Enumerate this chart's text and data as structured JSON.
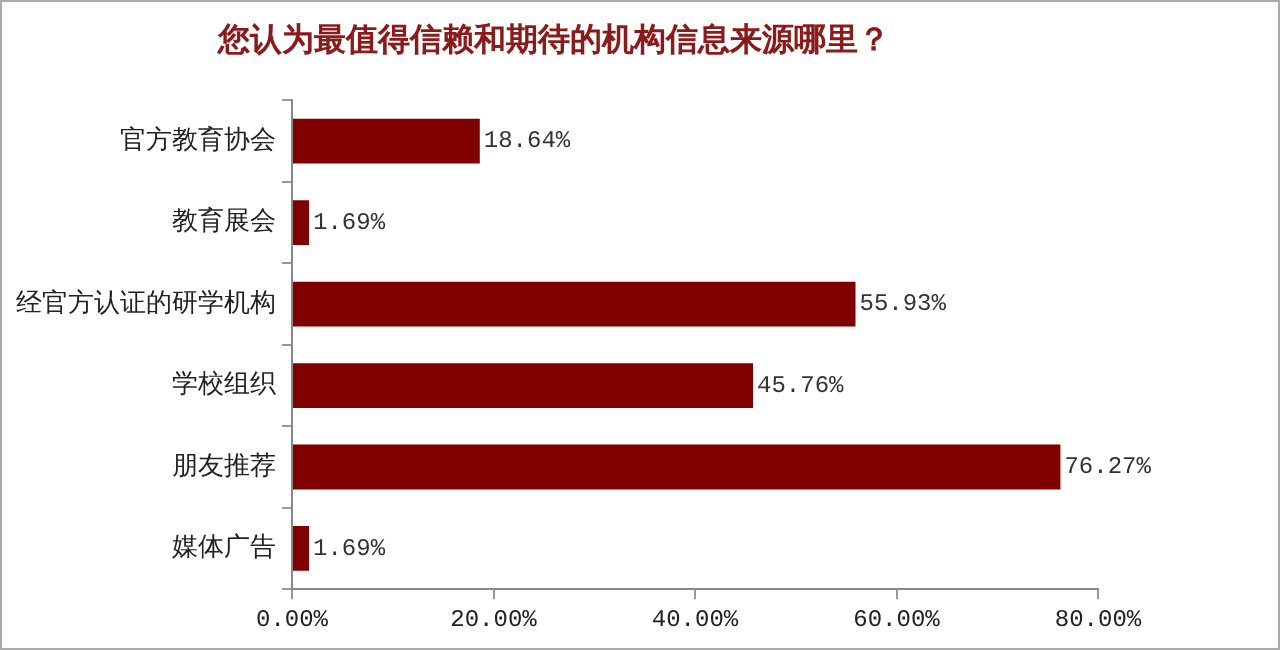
{
  "chart_data": {
    "type": "bar",
    "orientation": "horizontal",
    "title": "您认为最值得信赖和期待的机构信息来源哪里？",
    "categories": [
      "官方教育协会",
      "教育展会",
      "经官方认证的研学机构",
      "学校组织",
      "朋友推荐",
      "媒体广告"
    ],
    "values": [
      18.64,
      1.69,
      55.93,
      45.76,
      76.27,
      1.69
    ],
    "value_labels": [
      "18.64%",
      "1.69%",
      "55.93%",
      "45.76%",
      "76.27%",
      "1.69%"
    ],
    "color": "#800000",
    "xlim": [
      0,
      80
    ],
    "xticks": [
      {
        "value": 0,
        "label": "0.00%"
      },
      {
        "value": 20,
        "label": "20.00%"
      },
      {
        "value": 40,
        "label": "40.00%"
      },
      {
        "value": 60,
        "label": "60.00%"
      },
      {
        "value": 80,
        "label": "80.00%"
      }
    ],
    "grid": false,
    "legend": false
  }
}
